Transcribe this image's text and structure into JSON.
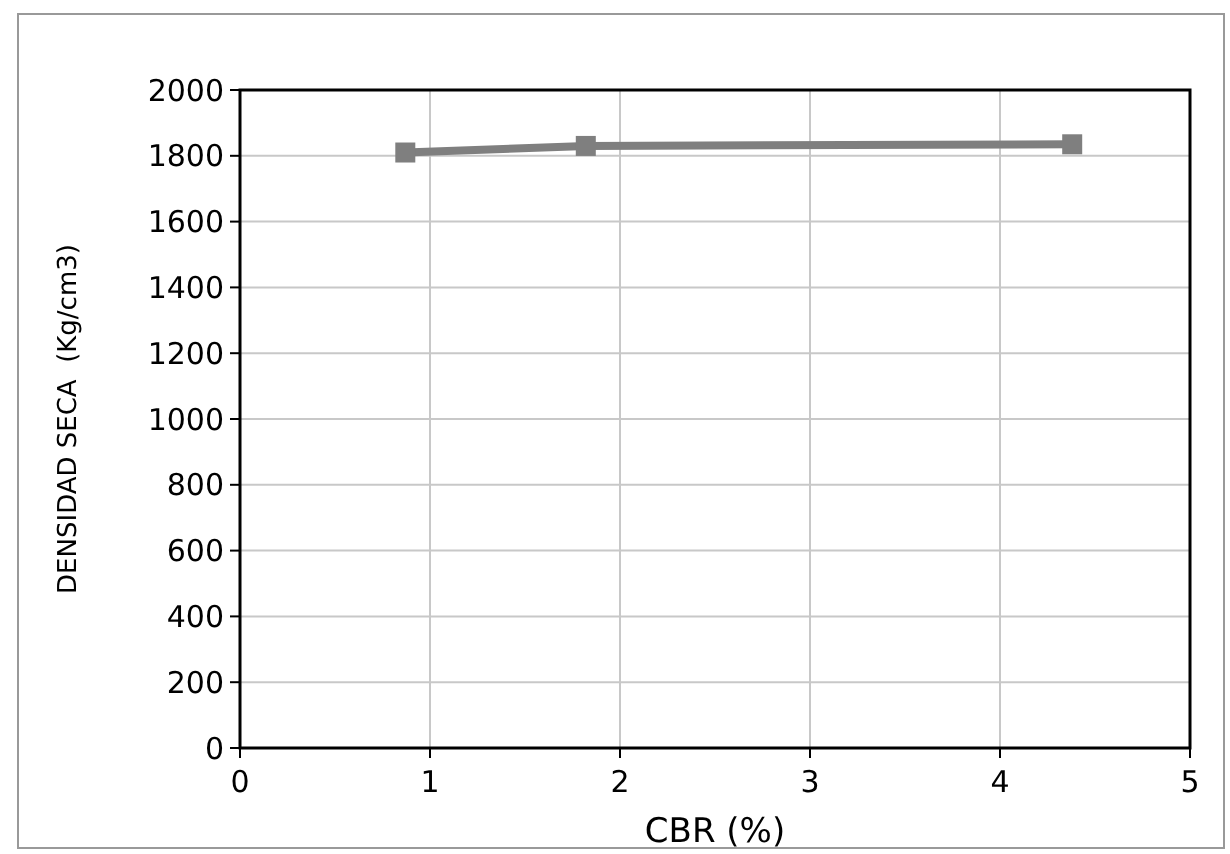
{
  "chart_data": {
    "type": "line",
    "xlabel": "CBR (%)",
    "ylabel": "DENSIDAD SECA  (Kg/cm3)",
    "x": [
      0.87,
      1.82,
      4.38
    ],
    "series": [
      {
        "color": "#7f7f7f",
        "values": [
          1810,
          1830,
          1835
        ]
      }
    ],
    "xlim": [
      0,
      5
    ],
    "xticks": [
      0,
      1,
      2,
      3,
      4,
      5
    ],
    "ylim": [
      0,
      2000
    ],
    "yticks": [
      0,
      200,
      400,
      600,
      800,
      1000,
      1200,
      1400,
      1600,
      1800,
      2000
    ],
    "grid": true,
    "marker": "square",
    "line_style": "solid"
  }
}
